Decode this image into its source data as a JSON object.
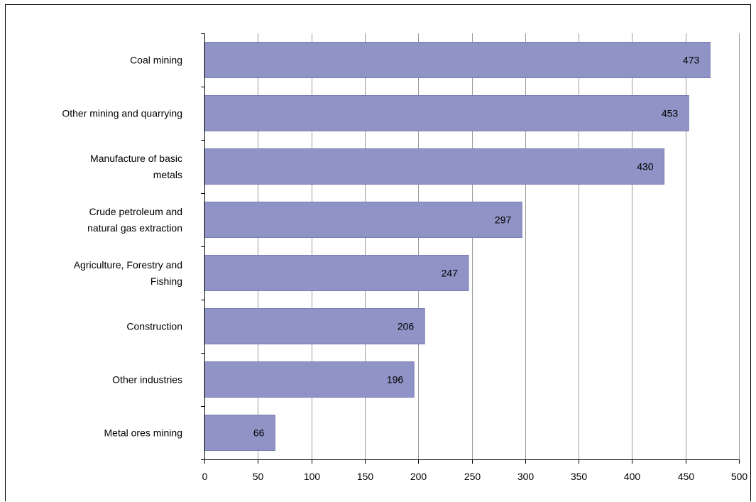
{
  "chart_data": {
    "type": "bar",
    "orientation": "horizontal",
    "categories": [
      "Coal mining",
      "Other mining and quarrying",
      "Manufacture of basic metals",
      "Crude petroleum and natural gas extraction",
      "Agriculture, Forestry and Fishing",
      "Construction",
      "Other industries",
      "Metal ores mining"
    ],
    "category_lines": [
      [
        "Coal mining"
      ],
      [
        "Other mining and quarrying"
      ],
      [
        "Manufacture of basic",
        "metals"
      ],
      [
        "Crude petroleum and",
        "natural gas extraction"
      ],
      [
        "Agriculture, Forestry and",
        "Fishing"
      ],
      [
        "Construction"
      ],
      [
        "Other industries"
      ],
      [
        "Metal ores mining"
      ]
    ],
    "values": [
      473,
      453,
      430,
      297,
      247,
      206,
      196,
      66
    ],
    "data_labels": [
      "473",
      "453",
      "430",
      "297",
      "247",
      "206",
      "196",
      "66"
    ],
    "xlim": [
      0,
      500
    ],
    "xticks": [
      0,
      50,
      100,
      150,
      200,
      250,
      300,
      350,
      400,
      450,
      500
    ],
    "grid": "vertical",
    "legend": "none",
    "bar_color": "#8f93c5",
    "bar_edge_color": "#7a7eb3",
    "grid_color": "#9a9a9a",
    "title": "",
    "xlabel": "",
    "ylabel": ""
  }
}
